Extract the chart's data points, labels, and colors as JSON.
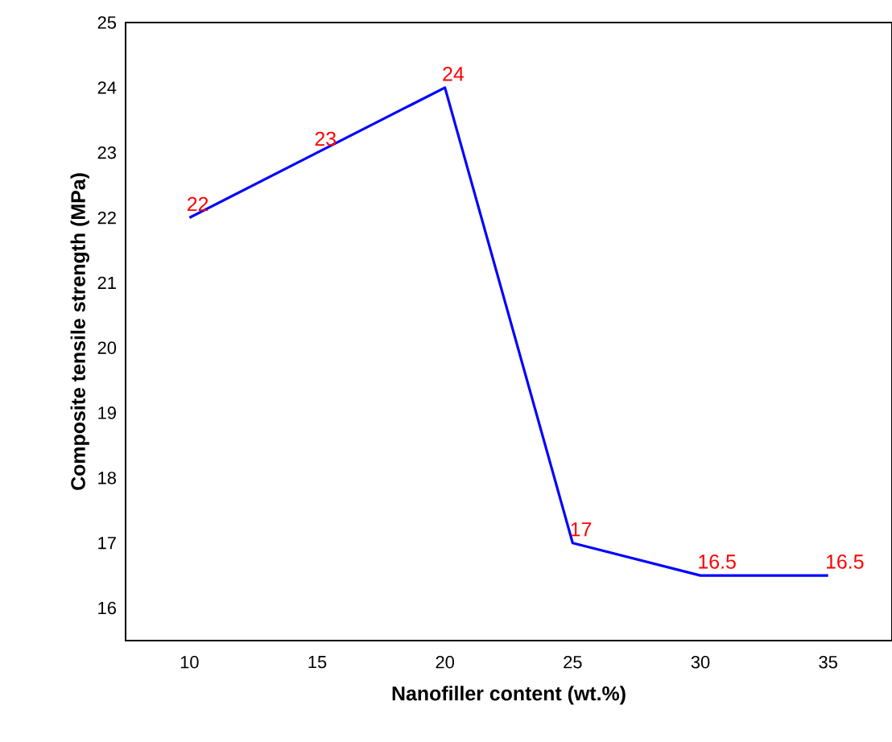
{
  "chart_data": {
    "type": "line",
    "xlabel": "Nanofiller content (wt.%)",
    "ylabel": "Composite tensile strength (MPa)",
    "x": [
      10,
      15,
      20,
      25,
      30,
      35
    ],
    "values": [
      22,
      23,
      24,
      17,
      16.5,
      16.5
    ],
    "color": "#0000ff",
    "data_labels": true,
    "marker": "none",
    "line_style": "solid",
    "grid": false,
    "xlim": [
      7.5,
      37.5
    ],
    "ylim": [
      15.5,
      25
    ],
    "xticks": [
      10,
      15,
      20,
      25,
      30,
      35
    ],
    "yticks": [
      16,
      17,
      18,
      19,
      20,
      21,
      22,
      23,
      24,
      25
    ]
  }
}
